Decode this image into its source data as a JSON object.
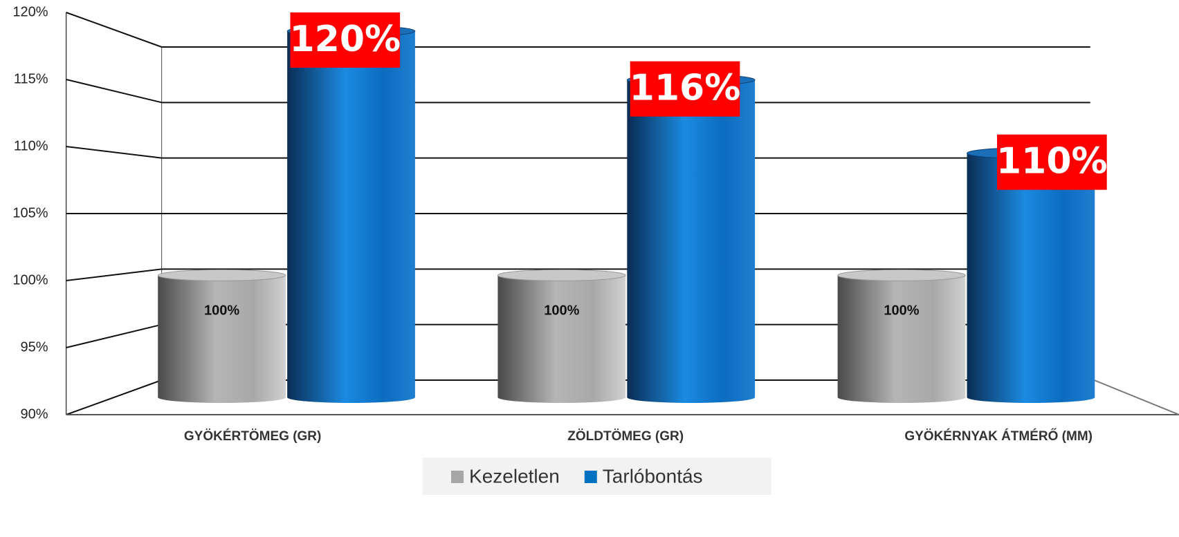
{
  "chart_data": {
    "type": "bar",
    "categories": [
      "GYÖKÉRTÖMEG (GR)",
      "ZÖLDTÖMEG (GR)",
      "GYÖKÉRNYAK ÁTMÉRŐ (MM)"
    ],
    "series": [
      {
        "name": "Kezeletlen",
        "color": "#a6a6a6",
        "values": [
          100,
          100,
          100
        ],
        "value_labels": [
          "100%",
          "100%",
          "100%"
        ]
      },
      {
        "name": "Tarlóbontás",
        "color": "#0070c0",
        "values": [
          120,
          116,
          110
        ],
        "value_labels": [
          "120%",
          "116%",
          "110%"
        ]
      }
    ],
    "ylim": [
      90,
      120
    ],
    "yticks": [
      {
        "value": 90,
        "label": "90%"
      },
      {
        "value": 95,
        "label": "95%"
      },
      {
        "value": 100,
        "label": "100%"
      },
      {
        "value": 105,
        "label": "105%"
      },
      {
        "value": 110,
        "label": "110%"
      },
      {
        "value": 115,
        "label": "115%"
      },
      {
        "value": 120,
        "label": "120%"
      }
    ],
    "grid": true,
    "legend": "bottom"
  }
}
